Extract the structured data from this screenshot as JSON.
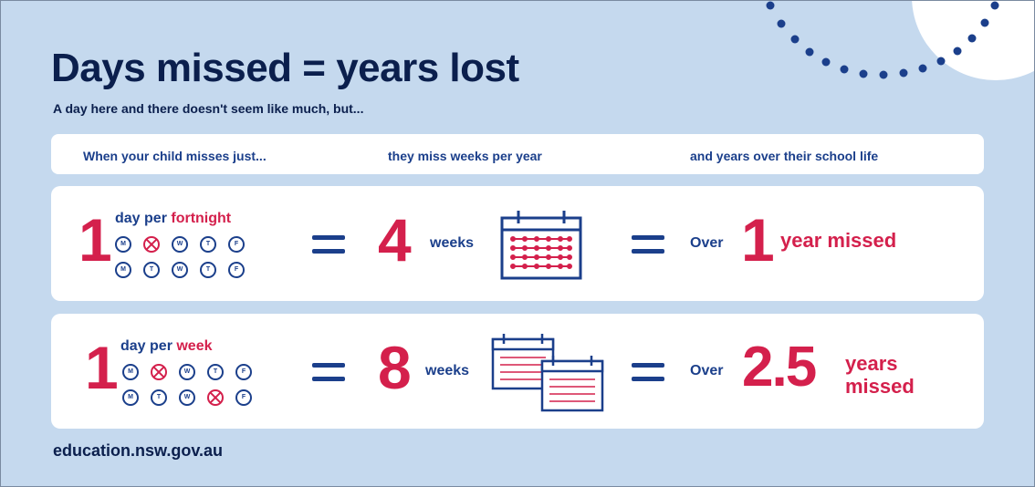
{
  "title": "Days missed = years lost",
  "subtitle": "A day here and there doesn't seem like much, but...",
  "header": {
    "col1": "When your child misses just...",
    "col2": "they miss weeks per year",
    "col3": "and years over their school life"
  },
  "rows": [
    {
      "count": "1",
      "day_per": "day per ",
      "period": "fortnight",
      "equals": "=",
      "weeks_value": "4",
      "weeks_label": "weeks",
      "over": "Over",
      "years_value": "1",
      "years_label": "year missed",
      "week1_days": [
        "M",
        "T",
        "W",
        "T",
        "F"
      ],
      "week1_missed": [
        false,
        true,
        false,
        false,
        false
      ],
      "week2_days": [
        "M",
        "T",
        "W",
        "T",
        "F"
      ],
      "week2_missed": [
        false,
        false,
        false,
        false,
        false
      ]
    },
    {
      "count": "1",
      "day_per": "day per ",
      "period": "week",
      "equals": "=",
      "weeks_value": "8",
      "weeks_label": "weeks",
      "over": "Over",
      "years_value": "2.5",
      "years_label_line1": "years",
      "years_label_line2": "missed",
      "week1_days": [
        "M",
        "T",
        "W",
        "T",
        "F"
      ],
      "week1_missed": [
        false,
        true,
        false,
        false,
        false
      ],
      "week2_days": [
        "M",
        "T",
        "W",
        "T",
        "F"
      ],
      "week2_missed": [
        false,
        false,
        false,
        true,
        false
      ]
    }
  ],
  "footer": "education.nsw.gov.au",
  "colors": {
    "background": "#c5d9ee",
    "navy": "#0b1f4d",
    "blue": "#1b3f8b",
    "red": "#d4204c",
    "card": "#ffffff"
  },
  "icons": [
    "calendar-icon",
    "weekday-circle-icon",
    "decorative-dots",
    "decorative-circle"
  ]
}
